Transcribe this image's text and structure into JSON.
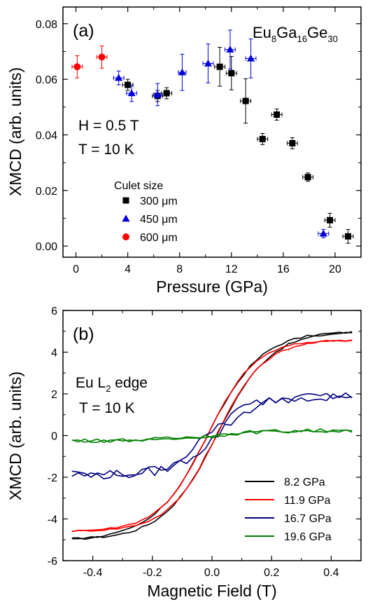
{
  "chart_data": [
    {
      "panel": "(a)",
      "type": "scatter",
      "title": "",
      "xlabel": "Pressure (GPa)",
      "ylabel": "XMCD (arb. units)",
      "xlim": [
        -1,
        22
      ],
      "ylim": [
        -0.004,
        0.086
      ],
      "xticks": [
        0,
        4,
        8,
        12,
        16,
        20
      ],
      "yticks": [
        0.0,
        0.02,
        0.04,
        0.06,
        0.08
      ],
      "ytick_labels": [
        "0.00",
        "0.02",
        "0.04",
        "0.06",
        "0.08"
      ],
      "grid": false,
      "annotations": {
        "compound": {
          "base1": "Eu",
          "sub1": "8",
          "base2": "Ga",
          "sub2": "16",
          "base3": "Ge",
          "sub3": "30"
        },
        "field": "H = 0.5 T",
        "temperature": "T = 10 K"
      },
      "legend": {
        "title": "Culet size",
        "placement": "lower-left"
      },
      "series": [
        {
          "name": "300 μm",
          "marker": "square",
          "color": "#000000",
          "points": [
            {
              "x": 4.0,
              "y": 0.058,
              "xerr": 0.4,
              "yerr": 0.002
            },
            {
              "x": 6.3,
              "y": 0.054,
              "xerr": 0.4,
              "yerr": 0.002
            },
            {
              "x": 7.0,
              "y": 0.055,
              "xerr": 0.4,
              "yerr": 0.002
            },
            {
              "x": 11.1,
              "y": 0.0645,
              "xerr": 0.4,
              "yerr": 0.007
            },
            {
              "x": 12.0,
              "y": 0.0622,
              "xerr": 0.4,
              "yerr": 0.006
            },
            {
              "x": 13.1,
              "y": 0.0522,
              "xerr": 0.4,
              "yerr": 0.008
            },
            {
              "x": 14.4,
              "y": 0.0385,
              "xerr": 0.4,
              "yerr": 0.002
            },
            {
              "x": 15.5,
              "y": 0.0473,
              "xerr": 0.4,
              "yerr": 0.002
            },
            {
              "x": 16.7,
              "y": 0.037,
              "xerr": 0.4,
              "yerr": 0.002
            },
            {
              "x": 17.9,
              "y": 0.0248,
              "xerr": 0.4,
              "yerr": 0.0015
            },
            {
              "x": 19.6,
              "y": 0.0093,
              "xerr": 0.4,
              "yerr": 0.0025
            },
            {
              "x": 21.0,
              "y": 0.0035,
              "xerr": 0.4,
              "yerr": 0.0025
            }
          ]
        },
        {
          "name": "450 μm",
          "marker": "triangle",
          "color": "#0000dd",
          "points": [
            {
              "x": 3.3,
              "y": 0.0605,
              "xerr": 0.4,
              "yerr": 0.0025
            },
            {
              "x": 4.3,
              "y": 0.055,
              "xerr": 0.4,
              "yerr": 0.003
            },
            {
              "x": 6.3,
              "y": 0.0545,
              "xerr": 0.3,
              "yerr": 0.004
            },
            {
              "x": 8.2,
              "y": 0.0625,
              "xerr": 0.3,
              "yerr": 0.0065
            },
            {
              "x": 10.2,
              "y": 0.0657,
              "xerr": 0.4,
              "yerr": 0.007
            },
            {
              "x": 11.9,
              "y": 0.0707,
              "xerr": 0.4,
              "yerr": 0.007
            },
            {
              "x": 13.5,
              "y": 0.0675,
              "xerr": 0.4,
              "yerr": 0.007
            },
            {
              "x": 19.1,
              "y": 0.0045,
              "xerr": 0.4,
              "yerr": 0.0015
            }
          ]
        },
        {
          "name": "600 μm",
          "marker": "circle",
          "color": "#ff0000",
          "points": [
            {
              "x": 0.1,
              "y": 0.0645,
              "xerr": 0.4,
              "yerr": 0.004
            },
            {
              "x": 2.0,
              "y": 0.068,
              "xerr": 0.4,
              "yerr": 0.004
            }
          ]
        }
      ]
    },
    {
      "panel": "(b)",
      "type": "line",
      "title": "",
      "xlabel": "Magnetic Field (T)",
      "ylabel": "XMCD (arb. units)",
      "xlim": [
        -0.5,
        0.5
      ],
      "ylim": [
        -6,
        6
      ],
      "xticks": [
        -0.4,
        -0.2,
        0.0,
        0.2,
        0.4
      ],
      "xtick_labels": [
        "-0.4",
        "-0.2",
        "0.0",
        "0.2",
        "0.4"
      ],
      "yticks": [
        -6,
        -4,
        -2,
        0,
        2,
        4,
        6
      ],
      "ytick_labels": [
        "-6",
        "-4",
        "-2",
        "0",
        "2",
        "4",
        "6"
      ],
      "grid": false,
      "annotations": {
        "edge": {
          "base": "Eu L",
          "sub": "2",
          "rest": " edge"
        },
        "temperature": "T = 10 K"
      },
      "legend": {
        "placement": "lower-right"
      },
      "series": [
        {
          "name": "8.2 GPa",
          "color": "#000000",
          "saturation": 5.0,
          "width": 0.18,
          "noise": 0.05
        },
        {
          "name": "11.9 GPa",
          "color": "#ff0000",
          "saturation": 4.6,
          "width": 0.16,
          "noise": 0.04
        },
        {
          "name": "16.7 GPa",
          "color": "#000080",
          "saturation": 1.9,
          "width": 0.14,
          "noise": 0.22
        },
        {
          "name": "19.6 GPa",
          "color": "#008000",
          "saturation": 0.25,
          "width": 0.2,
          "noise": 0.09
        }
      ]
    }
  ]
}
